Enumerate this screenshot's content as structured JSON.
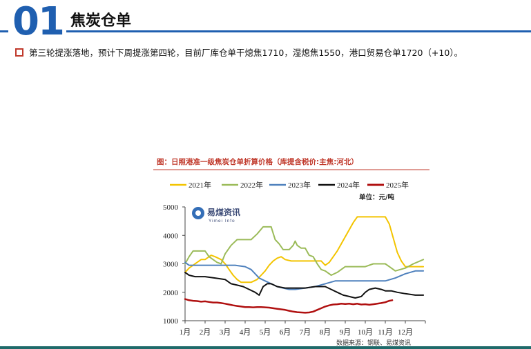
{
  "header": {
    "number": "01",
    "title": "焦炭仓单"
  },
  "bullet": {
    "text": "第三轮提涨落地，预计下周提涨第四轮，目前厂库仓单干熄焦1710，湿熄焦1550，港口贸易仓单1720（+10）。"
  },
  "colors": {
    "brand": "#1f5fb0",
    "chart_title": "#c0392b",
    "y2021": "#f3c400",
    "y2022": "#9bbb59",
    "y2023": "#4f81bd",
    "y2024": "#111111",
    "y2025": "#b01010"
  },
  "chart_data": {
    "type": "line",
    "title": "图：日照港准一级焦炭仓单折算价格（库提含税价:主焦:河北）",
    "unit_label": "单位：元/吨",
    "source": "数据来源：钢联、易煤资讯",
    "watermark": {
      "name": "易煤资讯",
      "sub": "Yimei Info"
    },
    "ylim": [
      1000,
      5000
    ],
    "yticks": [
      1000,
      2000,
      3000,
      4000,
      5000
    ],
    "xlim": [
      1,
      13
    ],
    "xticks": [
      "1月",
      "2月",
      "3月",
      "4月",
      "5月",
      "6月",
      "7月",
      "8月",
      "9月",
      "10月",
      "11月",
      "12月"
    ],
    "series": [
      {
        "name": "2021年",
        "color": "#f3c400",
        "width": 2,
        "x": [
          1.0,
          1.2,
          1.4,
          1.6,
          1.8,
          2.0,
          2.3,
          2.5,
          2.8,
          3.0,
          3.2,
          3.4,
          3.6,
          3.8,
          4.0,
          4.3,
          4.6,
          4.8,
          5.0,
          5.2,
          5.4,
          5.6,
          5.8,
          6.0,
          6.3,
          6.6,
          7.0,
          7.4,
          7.8,
          8.0,
          8.2,
          8.4,
          8.6,
          8.8,
          9.0,
          9.2,
          9.4,
          9.6,
          10.0,
          10.4,
          10.8,
          11.0,
          11.2,
          11.4,
          11.6,
          11.8,
          12.0,
          12.4,
          12.9
        ],
        "values": [
          2700,
          2850,
          2950,
          3050,
          3150,
          3150,
          3300,
          3250,
          3150,
          3000,
          2800,
          2600,
          2450,
          2350,
          2350,
          2350,
          2450,
          2600,
          2750,
          2950,
          3100,
          3200,
          3250,
          3150,
          3100,
          3100,
          3100,
          3100,
          3100,
          2950,
          3050,
          3250,
          3450,
          3700,
          3950,
          4200,
          4450,
          4650,
          4650,
          4650,
          4650,
          4650,
          4400,
          3900,
          3400,
          3100,
          2900,
          2900,
          2900
        ]
      },
      {
        "name": "2022年",
        "color": "#9bbb59",
        "width": 2,
        "x": [
          1.0,
          1.2,
          1.4,
          1.8,
          2.0,
          2.2,
          2.6,
          2.8,
          3.0,
          3.3,
          3.6,
          4.0,
          4.3,
          4.6,
          4.9,
          5.0,
          5.3,
          5.5,
          5.7,
          5.9,
          6.0,
          6.2,
          6.4,
          6.5,
          6.6,
          6.8,
          7.0,
          7.2,
          7.4,
          7.6,
          7.8,
          8.0,
          8.3,
          8.6,
          9.0,
          9.4,
          10.0,
          10.4,
          10.8,
          11.0,
          11.2,
          11.5,
          12.0,
          12.4,
          12.9
        ],
        "values": [
          3000,
          3250,
          3450,
          3450,
          3450,
          3250,
          3050,
          3000,
          3350,
          3650,
          3850,
          3850,
          3850,
          4050,
          4300,
          4300,
          4300,
          3850,
          3700,
          3500,
          3500,
          3500,
          3650,
          3800,
          3650,
          3550,
          3550,
          3300,
          3250,
          3000,
          2800,
          2750,
          2600,
          2700,
          2900,
          2900,
          2900,
          3000,
          3000,
          3000,
          2900,
          2750,
          2850,
          3000,
          3150
        ]
      },
      {
        "name": "2023年",
        "color": "#4f81bd",
        "width": 2,
        "x": [
          1.0,
          1.2,
          1.6,
          2.0,
          2.5,
          3.0,
          3.5,
          4.0,
          4.3,
          4.5,
          4.7,
          5.0,
          5.3,
          5.6,
          5.9,
          6.2,
          6.5,
          7.0,
          7.5,
          8.0,
          8.5,
          9.0,
          9.5,
          10.0,
          10.5,
          11.0,
          11.5,
          12.0,
          12.5,
          12.9
        ],
        "values": [
          3050,
          2950,
          2950,
          2950,
          2950,
          2950,
          2950,
          2900,
          2800,
          2650,
          2500,
          2400,
          2300,
          2200,
          2150,
          2100,
          2100,
          2150,
          2200,
          2300,
          2400,
          2400,
          2400,
          2400,
          2400,
          2400,
          2500,
          2650,
          2750,
          2750
        ]
      },
      {
        "name": "2024年",
        "color": "#111111",
        "width": 2,
        "x": [
          1.0,
          1.2,
          1.5,
          2.0,
          2.5,
          3.0,
          3.3,
          3.6,
          3.9,
          4.2,
          4.5,
          4.7,
          4.9,
          5.1,
          5.3,
          5.6,
          6.0,
          6.5,
          7.0,
          7.5,
          8.0,
          8.3,
          8.6,
          8.9,
          9.2,
          9.5,
          9.8,
          10.0,
          10.2,
          10.5,
          10.8,
          11.0,
          11.3,
          11.6,
          12.0,
          12.5,
          12.9
        ],
        "values": [
          2700,
          2600,
          2550,
          2550,
          2500,
          2450,
          2300,
          2250,
          2200,
          2100,
          2000,
          1900,
          2200,
          2300,
          2300,
          2200,
          2150,
          2150,
          2150,
          2200,
          2200,
          2100,
          2000,
          1900,
          1850,
          1800,
          1850,
          2000,
          2100,
          2150,
          2100,
          2050,
          2050,
          2000,
          1950,
          1900,
          1900
        ]
      },
      {
        "name": "2025年",
        "color": "#b01010",
        "width": 2.5,
        "x": [
          1.0,
          1.2,
          1.4,
          1.6,
          1.8,
          2.0,
          2.2,
          2.4,
          2.6,
          2.8,
          3.0,
          3.2,
          3.4,
          3.6,
          3.8,
          4.0,
          4.2,
          4.4,
          4.6,
          4.8,
          5.0,
          5.2,
          5.4,
          5.6,
          5.8,
          6.0,
          6.2,
          6.4,
          6.6,
          6.8,
          7.0,
          7.2,
          7.4,
          7.6,
          7.8,
          8.0,
          8.2,
          8.4,
          8.6,
          8.8,
          9.0,
          9.2,
          9.4,
          9.6,
          9.8,
          10.0,
          10.2,
          10.4,
          10.6,
          10.8,
          11.0,
          11.2,
          11.35
        ],
        "values": [
          1760,
          1720,
          1700,
          1690,
          1670,
          1680,
          1660,
          1640,
          1640,
          1620,
          1600,
          1570,
          1540,
          1520,
          1500,
          1480,
          1480,
          1470,
          1480,
          1480,
          1470,
          1460,
          1440,
          1420,
          1400,
          1380,
          1350,
          1320,
          1300,
          1290,
          1280,
          1290,
          1320,
          1380,
          1440,
          1500,
          1540,
          1570,
          1580,
          1600,
          1590,
          1600,
          1580,
          1600,
          1570,
          1580,
          1560,
          1580,
          1600,
          1620,
          1650,
          1700,
          1720
        ]
      }
    ]
  }
}
